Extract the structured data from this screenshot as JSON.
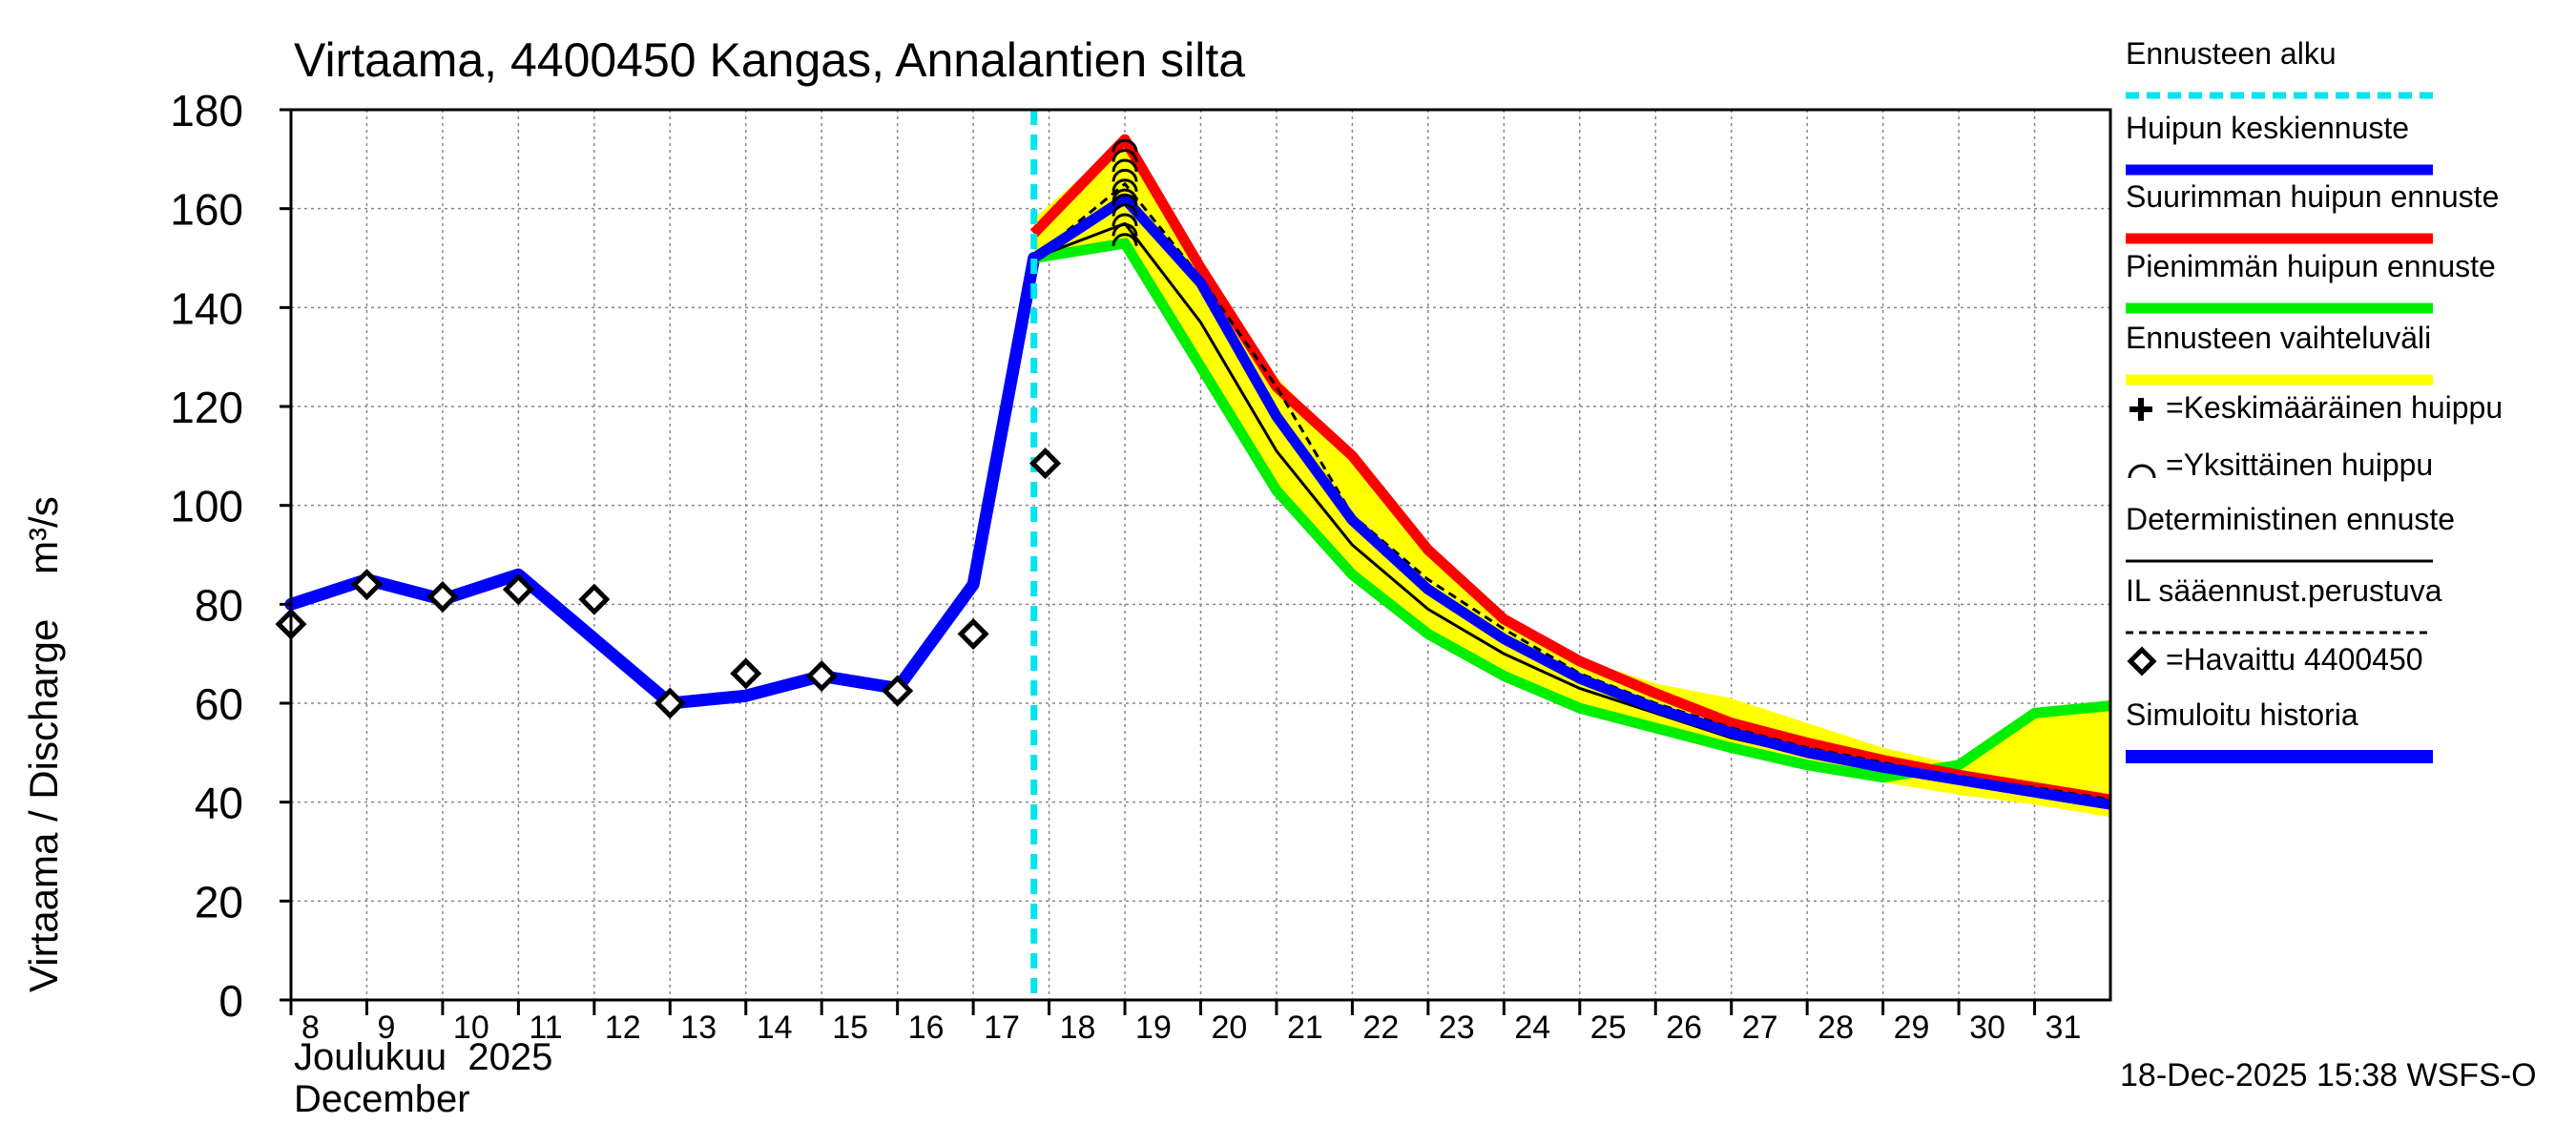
{
  "title": "Virtaama, 4400450 Kangas, Annalantien silta",
  "y_label": "Virtaama / Discharge    m³/s",
  "month_fi": "Joulukuu  2025",
  "month_en": "December",
  "timestamp": "18-Dec-2025 15:38 WSFS-O",
  "colors": {
    "mean_peak": "#0000ff",
    "max_peak": "#ff0000",
    "min_peak": "#00ee00",
    "range": "#ffff00",
    "forecast_start": "#00e5ee",
    "simulated": "#0000ff"
  },
  "legend": [
    {
      "key": "start",
      "label": "Ennusteen alku"
    },
    {
      "key": "mean",
      "label": "Huipun keskiennuste"
    },
    {
      "key": "max",
      "label": "Suurimman huipun ennuste"
    },
    {
      "key": "min",
      "label": "Pienimmän huipun ennuste"
    },
    {
      "key": "range",
      "label": "Ennusteen vaihteluväli"
    },
    {
      "key": "avgpeak",
      "label": "=Keskimääräinen huippu"
    },
    {
      "key": "singlepeak",
      "label": "=Yksittäinen huippu"
    },
    {
      "key": "determ",
      "label": "Deterministinen ennuste"
    },
    {
      "key": "il",
      "label": "IL sääennust.perustuva"
    },
    {
      "key": "obs",
      "label": "=Havaittu 4400450"
    },
    {
      "key": "sim",
      "label": "Simuloitu historia"
    }
  ],
  "chart_data": {
    "type": "line",
    "xlim": [
      8,
      32
    ],
    "ylim": [
      0,
      180
    ],
    "x_ticks": [
      8,
      9,
      10,
      11,
      12,
      13,
      14,
      15,
      16,
      17,
      18,
      19,
      20,
      21,
      22,
      23,
      24,
      25,
      26,
      27,
      28,
      29,
      30,
      31
    ],
    "y_ticks": [
      0,
      20,
      40,
      60,
      80,
      100,
      120,
      140,
      160,
      180
    ],
    "forecast_start_x": 17.8,
    "simulated_history": {
      "x": [
        8,
        9,
        10,
        11,
        12,
        13,
        14,
        15,
        16,
        17,
        17.8
      ],
      "y": [
        80,
        85,
        81,
        86,
        73,
        60,
        61.5,
        65.5,
        63,
        84,
        150
      ]
    },
    "observed": {
      "x": [
        8,
        9,
        10,
        11,
        12,
        13,
        14,
        15,
        16,
        17,
        17.95
      ],
      "y": [
        76,
        84,
        81.5,
        83,
        81,
        60,
        66,
        65.5,
        62.5,
        74,
        108.5
      ]
    },
    "peak_markers": {
      "x": 19,
      "y": [
        154,
        156,
        158,
        160,
        162,
        163,
        165,
        167,
        169,
        171,
        173
      ]
    },
    "series": [
      {
        "name": "Huipun keskiennuste",
        "x": [
          17.8,
          19,
          20,
          21,
          22,
          23,
          24,
          25,
          26,
          27,
          28,
          29,
          30,
          31,
          32
        ],
        "y": [
          150,
          162,
          145,
          118,
          97,
          83,
          73,
          65,
          59,
          54,
          50,
          47,
          44.5,
          42,
          39.5
        ]
      },
      {
        "name": "Suurimman huipun ennuste",
        "x": [
          17.8,
          19,
          20,
          21,
          22,
          23,
          24,
          25,
          26,
          27,
          28,
          29,
          30,
          31,
          32
        ],
        "y": [
          155,
          174,
          148,
          124,
          110,
          91,
          77,
          68.5,
          62,
          56,
          52,
          48.5,
          45.5,
          43,
          40.5
        ]
      },
      {
        "name": "Pienimmän huipun ennuste",
        "x": [
          17.8,
          19,
          20,
          21,
          22,
          23,
          24,
          25,
          26,
          27,
          28,
          29,
          30,
          31,
          32
        ],
        "y": [
          150,
          153,
          128,
          103,
          86,
          74,
          65.5,
          59,
          55,
          51,
          47.5,
          45,
          47.5,
          58,
          59.5
        ]
      },
      {
        "name": "Deterministinen ennuste",
        "x": [
          17.8,
          19,
          20,
          21,
          22,
          23,
          24,
          25,
          26,
          27,
          28,
          29,
          30,
          31,
          32
        ],
        "y": [
          150,
          157,
          137,
          111,
          92,
          79,
          70,
          63,
          58,
          53,
          49.5,
          46.5,
          44,
          42,
          39
        ]
      },
      {
        "name": "IL sääennust.perustuva",
        "x": [
          17.8,
          19,
          20,
          21,
          22,
          23,
          24,
          25,
          26,
          27,
          28,
          29,
          30,
          31,
          32
        ],
        "y": [
          150,
          165,
          146,
          124,
          98,
          85,
          75,
          66,
          60,
          55,
          51,
          48,
          45,
          43,
          40.5
        ]
      }
    ],
    "range": {
      "x": [
        17.8,
        19,
        20,
        21,
        22,
        23,
        24,
        25,
        26,
        27,
        28,
        29,
        30,
        31,
        32
      ],
      "upper": [
        158,
        174,
        148,
        126,
        110,
        91,
        77,
        69,
        64,
        61,
        56,
        51,
        47.5,
        58,
        60
      ],
      "lower": [
        149,
        152,
        127,
        102,
        86,
        73,
        65,
        58,
        54,
        50,
        46.5,
        44,
        41.5,
        39.5,
        37
      ]
    }
  }
}
